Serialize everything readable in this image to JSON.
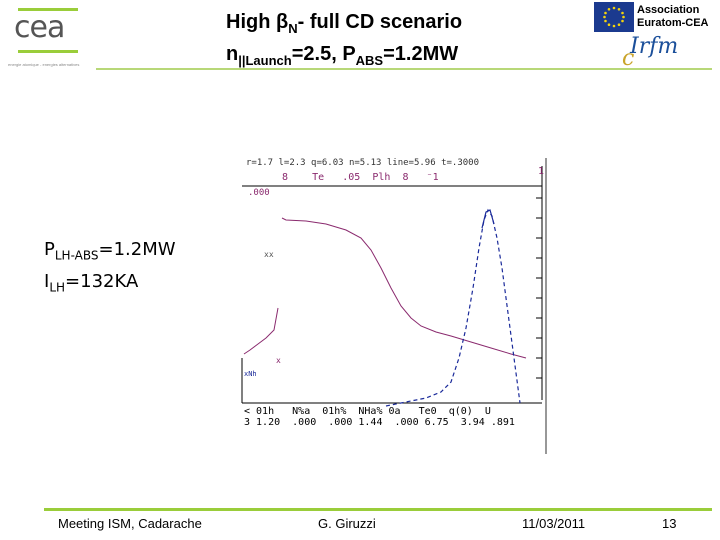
{
  "logo": {
    "brand": "cea",
    "tagline": "energie atomique - energies alternatives"
  },
  "title": {
    "line1_prefix": "High ",
    "beta": "β",
    "beta_sub": "N",
    "line1_suffix": "- full CD scenario",
    "line2_n": "n",
    "line2_n_sub": "||Launch",
    "line2_mid": "=2.5, P",
    "line2_p_sub": "ABS",
    "line2_end": "=1.2MW"
  },
  "association": {
    "line1": "Association",
    "line2": "Euratom-CEA"
  },
  "irfm": {
    "c": "c",
    "text": "Irfm"
  },
  "plot": {
    "top_header": "r=1.7  l=2.3  q=6.03 n=5.13 line=5.96 t=.3000",
    "header_row": [
      "8",
      "Te",
      ".05",
      "Plh",
      "8",
      "⁻1"
    ],
    "right_mark": "1",
    "y_tick_top": ".000",
    "bottom_row1": "< 01h   N%a  01h%  NHa% 0a   Te0  q(0)  U",
    "bottom_row2": "3 1.20  .000  .000 1.44  .000 6.75  3.94 .891",
    "left_marks": [
      "xx",
      "x",
      "xNh"
    ]
  },
  "left_text": {
    "p": "P",
    "p_sub": "LH-ABS",
    "p_val": "=1.2MW",
    "i": "I",
    "i_sub": "LH",
    "i_val": "=132KA"
  },
  "footer": {
    "meeting": "Meeting ISM, Cadarache",
    "author": "G. Giruzzi",
    "date": "11/03/2011",
    "page": "13"
  },
  "colors": {
    "accent_green": "#9acd3a",
    "te_curve": "#8a2a6e",
    "plh_curve": "#1a2a9a",
    "eu_blue": "#1b3a8f"
  }
}
